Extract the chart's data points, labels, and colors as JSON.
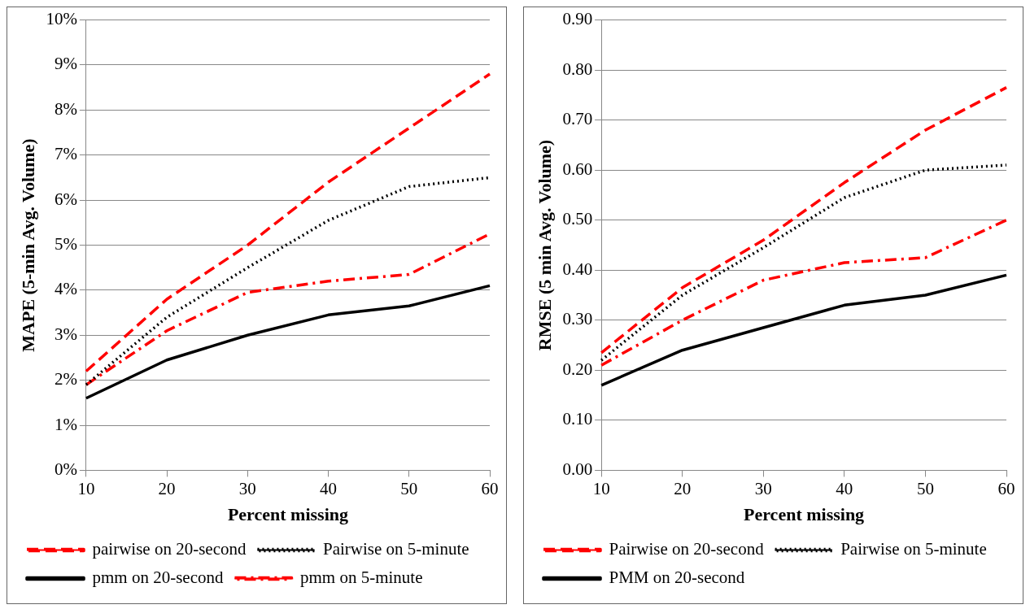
{
  "chart_data": [
    {
      "type": "line",
      "xlabel": "Percent missing",
      "ylabel": "MAPE (5-min Avg. Volume)",
      "x": [
        10,
        20,
        30,
        40,
        50,
        60
      ],
      "xlim": [
        10,
        60
      ],
      "xticks": [
        10,
        20,
        30,
        40,
        50,
        60
      ],
      "ylim": [
        0,
        10
      ],
      "yticks": [
        {
          "value": 0,
          "label": "0%"
        },
        {
          "value": 1,
          "label": "1%"
        },
        {
          "value": 2,
          "label": "2%"
        },
        {
          "value": 3,
          "label": "3%"
        },
        {
          "value": 4,
          "label": "4%"
        },
        {
          "value": 5,
          "label": "5%"
        },
        {
          "value": 6,
          "label": "6%"
        },
        {
          "value": 7,
          "label": "7%"
        },
        {
          "value": 8,
          "label": "8%"
        },
        {
          "value": 9,
          "label": "9%"
        },
        {
          "value": 10,
          "label": "10%"
        }
      ],
      "grid": "y",
      "legend": "bottom",
      "marker": "none",
      "series": [
        {
          "name": "pairwise on 20-second",
          "color": "#ff0000",
          "line_style": "dashed",
          "values": [
            2.2,
            3.8,
            5.0,
            6.4,
            7.6,
            8.8
          ]
        },
        {
          "name": "Pairwise on 5-minute",
          "color": "#000000",
          "line_style": "dotted",
          "values": [
            1.9,
            3.4,
            4.5,
            5.55,
            6.3,
            6.5
          ]
        },
        {
          "name": "pmm on 20-second",
          "color": "#000000",
          "line_style": "solid",
          "values": [
            1.6,
            2.45,
            3.0,
            3.45,
            3.65,
            4.1
          ]
        },
        {
          "name": "pmm on 5-minute",
          "color": "#ff0000",
          "line_style": "dashdot",
          "values": [
            1.9,
            3.1,
            3.95,
            4.2,
            4.35,
            5.25
          ]
        }
      ]
    },
    {
      "type": "line",
      "xlabel": "Percent missing",
      "ylabel": "RMSE (5 min Avg. Volume)",
      "x": [
        10,
        20,
        30,
        40,
        50,
        60
      ],
      "xlim": [
        10,
        60
      ],
      "xticks": [
        10,
        20,
        30,
        40,
        50,
        60
      ],
      "ylim": [
        0,
        0.9
      ],
      "yticks": [
        {
          "value": 0,
          "label": "0.00"
        },
        {
          "value": 0.1,
          "label": "0.10"
        },
        {
          "value": 0.2,
          "label": "0.20"
        },
        {
          "value": 0.3,
          "label": "0.30"
        },
        {
          "value": 0.4,
          "label": "0.40"
        },
        {
          "value": 0.5,
          "label": "0.50"
        },
        {
          "value": 0.6,
          "label": "0.60"
        },
        {
          "value": 0.7,
          "label": "0.70"
        },
        {
          "value": 0.8,
          "label": "0.80"
        },
        {
          "value": 0.9,
          "label": "0.90"
        }
      ],
      "grid": "y",
      "legend": "bottom",
      "marker": "none",
      "series": [
        {
          "name": "Pairwise on 20-second",
          "color": "#ff0000",
          "line_style": "dashed",
          "values": [
            0.235,
            0.365,
            0.46,
            0.575,
            0.68,
            0.765
          ]
        },
        {
          "name": "Pairwise on 5-minute",
          "color": "#000000",
          "line_style": "dotted",
          "values": [
            0.22,
            0.35,
            0.445,
            0.545,
            0.6,
            0.61
          ]
        },
        {
          "name": "PMM on 20-second",
          "color": "#000000",
          "line_style": "solid",
          "values": [
            0.17,
            0.24,
            0.285,
            0.33,
            0.35,
            0.39
          ]
        },
        {
          "color": "#ff0000",
          "line_style": "dashdot",
          "values": [
            0.21,
            0.3,
            0.38,
            0.415,
            0.425,
            0.5
          ]
        }
      ]
    }
  ]
}
